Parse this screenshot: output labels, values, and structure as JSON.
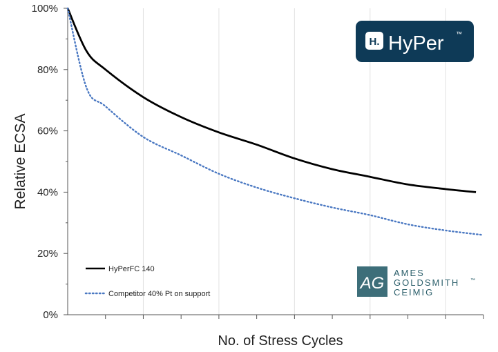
{
  "chart_data": {
    "type": "line",
    "title": "",
    "xlabel": "No. of Stress Cycles",
    "ylabel": "Relative ECSA",
    "xlim": [
      0,
      11
    ],
    "ylim": [
      0,
      100
    ],
    "yticks": [
      "0%",
      "20%",
      "40%",
      "60%",
      "80%",
      "100%"
    ],
    "grid": "vertical",
    "legend": "bottom-left",
    "series": [
      {
        "name": "HyPerFC 140",
        "style": "solid",
        "color": "#000000",
        "x": [
          0,
          0.5,
          1,
          2,
          3,
          4,
          5,
          6,
          7,
          8,
          9,
          10,
          10.8
        ],
        "y": [
          100,
          86,
          80,
          71,
          64.5,
          59.5,
          55.5,
          51,
          47.5,
          45,
          42.5,
          41,
          40
        ]
      },
      {
        "name": "Competitor 40% Pt on support",
        "style": "dotted",
        "color": "#4a78c2",
        "x": [
          0,
          0.5,
          1,
          2,
          3,
          4,
          5,
          6,
          7,
          8,
          9,
          10,
          11
        ],
        "y": [
          100,
          74,
          68,
          58,
          52,
          46,
          41.5,
          38,
          35,
          32.5,
          29.5,
          27.5,
          26
        ]
      }
    ]
  },
  "brand_logo": {
    "text": "HyPer",
    "tm": "™",
    "badge_text": "H.",
    "background": "#0e3a57"
  },
  "company_logo": {
    "monogram": "AG",
    "line1": "AMES",
    "line2": "GOLDSMITH",
    "tm": "™",
    "line3": "CEIMIG",
    "color": "#2c5f6b"
  }
}
